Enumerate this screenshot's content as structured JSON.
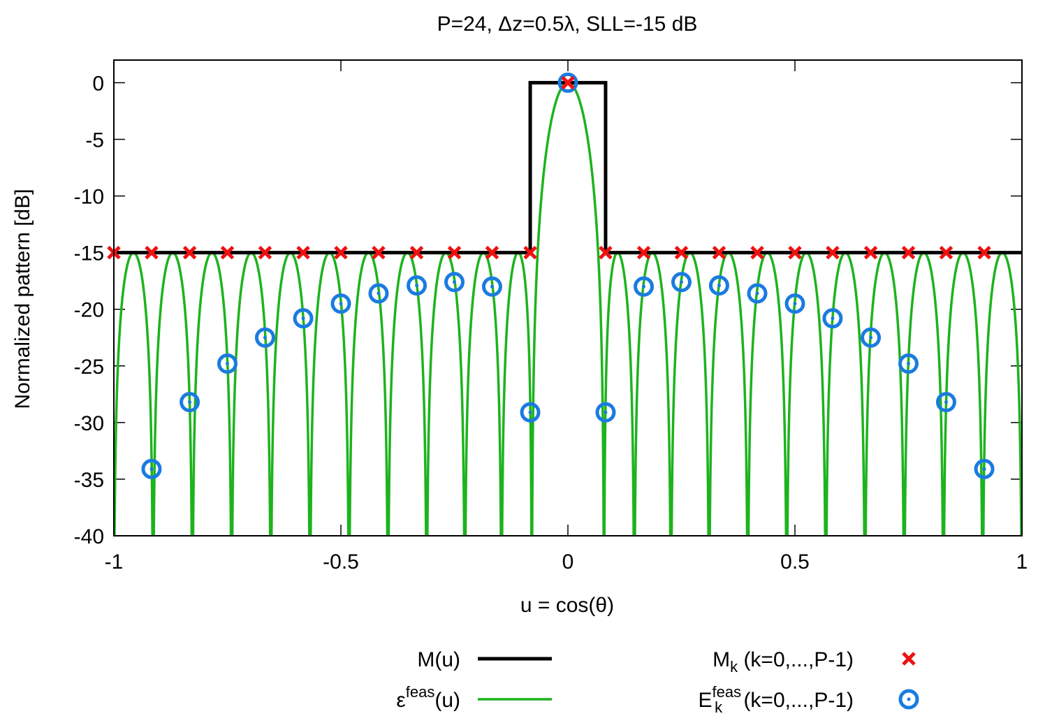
{
  "chart_data": {
    "type": "line",
    "title": "P=24, Δz=0.5λ, SLL=-15 dB",
    "xlabel": "u = cos(θ)",
    "ylabel": "Normalized pattern [dB]",
    "xlim": [
      -1,
      1
    ],
    "ylim": [
      -40,
      2
    ],
    "x_ticks": [
      -1,
      -0.5,
      0,
      0.5,
      1
    ],
    "x_tick_labels": [
      "-1",
      "-0.5",
      "0",
      "0.5",
      "1"
    ],
    "y_ticks": [
      0,
      -5,
      -10,
      -15,
      -20,
      -25,
      -30,
      -35,
      -40
    ],
    "y_tick_labels": [
      "0",
      "-5",
      "-10",
      "-15",
      "-20",
      "-25",
      "-30",
      "-35",
      "-40"
    ],
    "grid": false,
    "legend_position": "bottom",
    "legend": [
      {
        "name": "M(u)",
        "name_main": "M(u)",
        "kind": "line",
        "color": "#000000"
      },
      {
        "name": "ε^feas(u)",
        "name_main": "ε",
        "name_sup": "feas",
        "name_tail": "(u)",
        "kind": "line",
        "color": "#1db31d"
      },
      {
        "name": "M_k (k=0,...,P-1)",
        "name_main": "M",
        "name_sub": "k",
        "name_tail": " (k=0,...,P-1)",
        "kind": "cross",
        "color": "#ee1111"
      },
      {
        "name": "E_k^feas (k=0,...,P-1)",
        "name_main": "E",
        "name_sub": "k",
        "name_sup": "feas",
        "name_tail": " (k=0,...,P-1)",
        "kind": "circle",
        "color": "#1a7be0"
      }
    ],
    "mask": {
      "mainlobe_level": 0,
      "sidelobe_level": -15,
      "mainlobe_edges": [
        -0.083,
        0.083
      ],
      "color": "#000000"
    },
    "pattern": {
      "elements": 24,
      "spacing_wavelengths": 0.5,
      "sll_db": -15,
      "floor_db": -40,
      "color": "#1db31d"
    },
    "Mk": {
      "color": "#ee1111",
      "u": [
        -1.0,
        -0.917,
        -0.833,
        -0.75,
        -0.667,
        -0.583,
        -0.5,
        -0.417,
        -0.333,
        -0.25,
        -0.167,
        -0.083,
        0.0,
        0.083,
        0.167,
        0.25,
        0.333,
        0.417,
        0.5,
        0.583,
        0.667,
        0.75,
        0.833,
        0.917
      ],
      "values": [
        -15,
        -15,
        -15,
        -15,
        -15,
        -15,
        -15,
        -15,
        -15,
        -15,
        -15,
        -15,
        0,
        -15,
        -15,
        -15,
        -15,
        -15,
        -15,
        -15,
        -15,
        -15,
        -15,
        -15
      ]
    },
    "Ek": {
      "color": "#1a7be0",
      "u": [
        -0.917,
        -0.833,
        -0.75,
        -0.667,
        -0.583,
        -0.5,
        -0.417,
        -0.333,
        -0.25,
        -0.167,
        -0.083,
        0.0,
        0.083,
        0.167,
        0.25,
        0.333,
        0.417,
        0.5,
        0.583,
        0.667,
        0.75,
        0.833,
        0.917
      ],
      "values": [
        -34.1,
        -28.2,
        -24.8,
        -22.5,
        -20.8,
        -19.5,
        -18.6,
        -17.9,
        -17.6,
        -18.0,
        -29.1,
        0,
        -29.1,
        -18.0,
        -17.6,
        -17.9,
        -18.6,
        -19.5,
        -20.8,
        -22.5,
        -24.8,
        -28.2,
        -34.1
      ]
    }
  }
}
